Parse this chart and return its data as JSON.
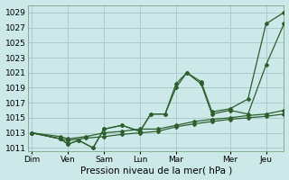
{
  "xlabel": "Pression niveau de la mer( hPa )",
  "background_color": "#cce8e8",
  "grid_color": "#aacccc",
  "line_color": "#2d5e2d",
  "xlim": [
    -0.1,
    7.0
  ],
  "ylim": [
    1010.5,
    1030.0
  ],
  "yticks": [
    1011,
    1013,
    1015,
    1017,
    1019,
    1021,
    1023,
    1025,
    1027,
    1029
  ],
  "xtick_labels": [
    "Dim",
    "Ven",
    "Sam",
    "Lun",
    "Mar",
    "Mer",
    "Jeu"
  ],
  "xtick_positions": [
    0.0,
    1.0,
    2.0,
    3.0,
    4.0,
    5.5,
    6.5
  ],
  "series": [
    {
      "x": [
        0.0,
        0.8,
        1.0,
        1.5,
        2.0,
        2.5,
        3.0,
        3.5,
        4.0,
        4.5,
        5.0,
        5.5,
        6.0,
        6.5,
        7.0
      ],
      "y": [
        1013.0,
        1012.2,
        1012.0,
        1012.3,
        1012.5,
        1012.8,
        1013.0,
        1013.2,
        1013.8,
        1014.2,
        1014.5,
        1014.8,
        1015.0,
        1015.2,
        1015.5
      ]
    },
    {
      "x": [
        0.0,
        0.8,
        1.0,
        1.5,
        2.0,
        2.5,
        3.0,
        3.5,
        4.0,
        4.5,
        5.0,
        5.5,
        6.0,
        6.5,
        7.0
      ],
      "y": [
        1013.0,
        1012.5,
        1012.2,
        1012.5,
        1013.0,
        1013.2,
        1013.5,
        1013.5,
        1014.0,
        1014.5,
        1014.8,
        1015.0,
        1015.3,
        1015.5,
        1016.0
      ]
    },
    {
      "x": [
        0.0,
        0.8,
        1.0,
        1.3,
        1.7,
        2.0,
        2.5,
        3.0,
        3.3,
        3.7,
        4.0,
        4.3,
        4.7,
        5.0,
        5.5,
        6.0,
        6.5,
        7.0
      ],
      "y": [
        1013.0,
        1012.2,
        1011.5,
        1012.0,
        1011.0,
        1013.5,
        1014.0,
        1013.2,
        1015.5,
        1015.5,
        1019.0,
        1021.0,
        1019.5,
        1015.5,
        1016.0,
        1015.5,
        1022.0,
        1027.5
      ]
    },
    {
      "x": [
        0.0,
        0.8,
        1.0,
        1.3,
        1.7,
        2.0,
        2.5,
        3.0,
        3.3,
        3.7,
        4.0,
        4.3,
        4.7,
        5.0,
        5.5,
        6.0,
        6.5,
        7.0
      ],
      "y": [
        1013.0,
        1012.2,
        1011.5,
        1012.0,
        1011.0,
        1013.5,
        1014.0,
        1013.2,
        1015.5,
        1015.5,
        1019.5,
        1021.0,
        1019.8,
        1015.8,
        1016.2,
        1017.5,
        1027.5,
        1029.0
      ]
    }
  ]
}
